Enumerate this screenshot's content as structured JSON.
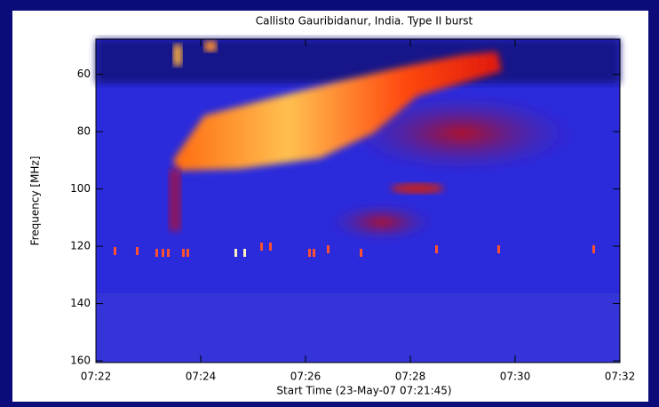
{
  "chart_data": {
    "type": "spectrogram",
    "title": "Callisto Gauribidanur, India. Type II burst",
    "x_label": "Start Time (23-May-07 07:21:45)",
    "y_label": "Frequency [MHz]",
    "xlim": [
      "07:22",
      "07:32"
    ],
    "xticks": [
      "07:22",
      "07:24",
      "07:26",
      "07:28",
      "07:30",
      "07:32"
    ],
    "ylim": [
      47.7,
      160.6
    ],
    "y_inverted": true,
    "yticks": [
      60,
      80,
      100,
      120,
      140,
      160
    ]
  }
}
